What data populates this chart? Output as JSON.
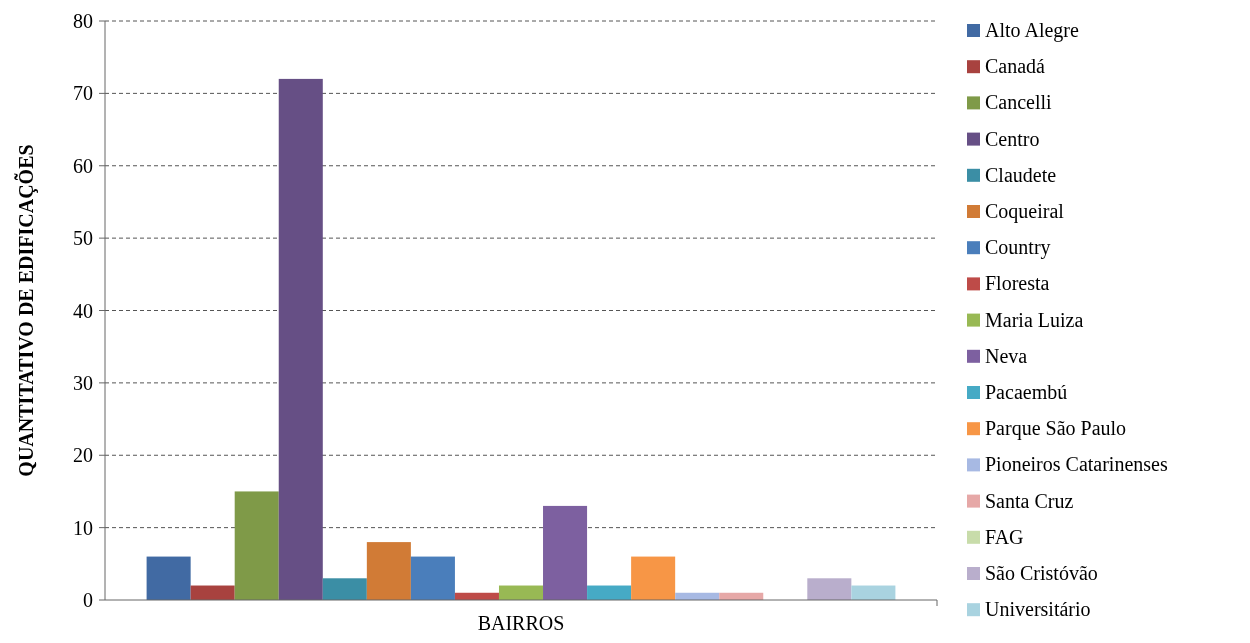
{
  "chart_data": {
    "type": "bar",
    "categories": [
      "BAIRROS"
    ],
    "ylabel": "QUANTITATIVO DE EDIFICAÇÕES",
    "ylim": [
      0,
      80
    ],
    "yticks": [
      0,
      10,
      20,
      30,
      40,
      50,
      60,
      70,
      80
    ],
    "grid": "y",
    "legend": "right",
    "series": [
      {
        "name": "Alto Alegre",
        "color": "#416aa3",
        "values": [
          6
        ]
      },
      {
        "name": "Canadá",
        "color": "#a8423f",
        "values": [
          2
        ]
      },
      {
        "name": "Cancelli",
        "color": "#7f9a48",
        "values": [
          15
        ]
      },
      {
        "name": "Centro",
        "color": "#664f85",
        "values": [
          72
        ]
      },
      {
        "name": "Claudete",
        "color": "#3b8ea5",
        "values": [
          3
        ]
      },
      {
        "name": "Coqueiral",
        "color": "#d17b36",
        "values": [
          8
        ]
      },
      {
        "name": "Country",
        "color": "#4a7ebb",
        "values": [
          6
        ]
      },
      {
        "name": "Floresta",
        "color": "#be4b48",
        "values": [
          1
        ]
      },
      {
        "name": "Maria Luiza",
        "color": "#98b954",
        "values": [
          2
        ]
      },
      {
        "name": "Neva",
        "color": "#7d60a0",
        "values": [
          13
        ]
      },
      {
        "name": "Pacaembú",
        "color": "#46aac5",
        "values": [
          2
        ]
      },
      {
        "name": "Parque São Paulo",
        "color": "#f79646",
        "values": [
          6
        ]
      },
      {
        "name": "Pioneiros Catarinenses",
        "color": "#a7b9e3",
        "values": [
          1
        ]
      },
      {
        "name": "Santa Cruz",
        "color": "#e6a8a7",
        "values": [
          1
        ]
      },
      {
        "name": "FAG",
        "color": "#c8dcaa",
        "values": [
          0
        ]
      },
      {
        "name": "São Cristóvão",
        "color": "#b9aecc",
        "values": [
          3
        ]
      },
      {
        "name": "Universitário",
        "color": "#a9d3e0",
        "values": [
          2
        ]
      }
    ]
  }
}
